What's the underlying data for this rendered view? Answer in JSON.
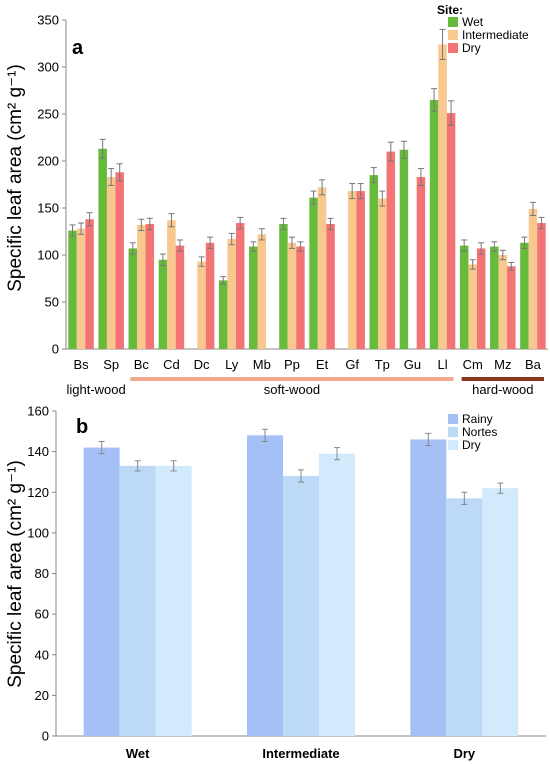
{
  "chart_data": [
    {
      "type": "bar",
      "panel_label": "a",
      "ylabel": "Specific leaf area  (cm² g⁻¹)",
      "ylim": [
        0,
        350
      ],
      "yticks": [
        0,
        50,
        100,
        150,
        200,
        250,
        300,
        350
      ],
      "legend_title": "Site:",
      "legend_position": "top-right",
      "categories": [
        "Bs",
        "Sp",
        "Bc",
        "Cd",
        "Dc",
        "Ly",
        "Mb",
        "Pp",
        "Et",
        "Gf",
        "Tp",
        "Gu",
        "Ll",
        "Cm",
        "Mz",
        "Ba"
      ],
      "series": [
        {
          "name": "Wet",
          "color": "#66BB3A",
          "values": [
            126,
            213,
            107,
            95,
            null,
            73,
            109,
            133,
            161,
            null,
            185,
            212,
            265,
            110,
            109,
            113
          ],
          "errors": [
            6,
            10,
            6,
            6,
            null,
            4,
            5,
            6,
            7,
            null,
            8,
            9,
            12,
            6,
            5,
            6
          ]
        },
        {
          "name": "Intermediate",
          "color": "#F8C88F",
          "values": [
            128,
            183,
            132,
            137,
            93,
            117,
            122,
            113,
            172,
            168,
            160,
            null,
            324,
            90,
            100,
            149
          ],
          "errors": [
            6,
            9,
            6,
            7,
            5,
            6,
            6,
            6,
            8,
            8,
            8,
            null,
            16,
            5,
            5,
            7
          ]
        },
        {
          "name": "Dry",
          "color": "#F47374",
          "values": [
            138,
            188,
            133,
            110,
            113,
            134,
            null,
            109,
            133,
            168,
            210,
            183,
            251,
            107,
            88,
            134
          ],
          "errors": [
            7,
            9,
            6,
            6,
            6,
            6,
            null,
            5,
            6,
            8,
            10,
            9,
            13,
            6,
            4,
            6
          ]
        }
      ],
      "groups": [
        {
          "label": "light-wood",
          "from": "Bs",
          "to": "Sp",
          "color": ""
        },
        {
          "label": "soft-wood",
          "from": "Bc",
          "to": "Ll",
          "color": "#F2A98B"
        },
        {
          "label": "hard-wood",
          "from": "Cm",
          "to": "Ba",
          "color": "#8B3A1E"
        }
      ],
      "grid": false
    },
    {
      "type": "bar",
      "panel_label": "b",
      "ylabel": "Specific leaf area (cm² g⁻¹)",
      "ylim": [
        0,
        160
      ],
      "yticks": [
        0,
        20,
        40,
        60,
        80,
        100,
        120,
        140,
        160
      ],
      "legend_position": "top-right",
      "categories": [
        "Wet",
        "Intermediate",
        "Dry"
      ],
      "series": [
        {
          "name": "Rainy",
          "color": "#A5C0F5",
          "values": [
            142,
            148,
            146
          ],
          "errors": [
            3,
            3,
            3
          ]
        },
        {
          "name": "Nortes",
          "color": "#BCD9F8",
          "values": [
            133,
            128,
            117
          ],
          "errors": [
            2.5,
            3,
            3
          ]
        },
        {
          "name": "Dry",
          "color": "#D2EBFC",
          "values": [
            133,
            139,
            122
          ],
          "errors": [
            2.5,
            3,
            2.5
          ]
        }
      ],
      "grid": false
    }
  ]
}
